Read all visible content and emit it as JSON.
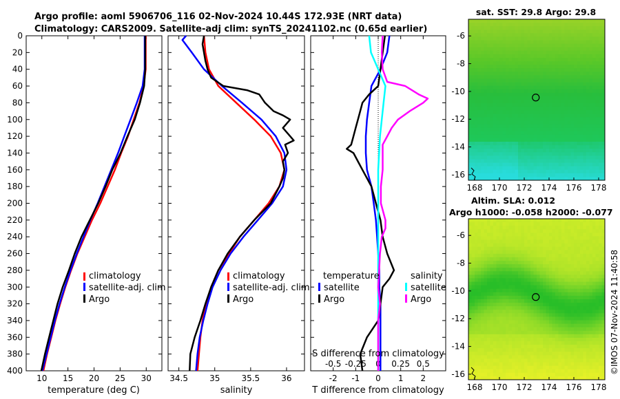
{
  "header": {
    "title_line1": "Argo profile: aoml 5906706_116 02-Nov-2024 10.44S 172.93E (NRT data)",
    "title_line2": "Climatology: CARS2009. Satellite-adj clim: synTS_20241102.nc (0.65d earlier)"
  },
  "colors": {
    "climatology": "#ff0000",
    "satellite": "#0000ff",
    "argo": "#000000",
    "sal_sat": "#00ffff",
    "sal_argo": "#ff00ff"
  },
  "chart_data": [
    {
      "type": "line",
      "xlabel": "temperature (deg C)",
      "xlim": [
        7,
        33
      ],
      "xticks": [
        10,
        15,
        20,
        25,
        30
      ],
      "ylim": [
        0,
        400
      ],
      "yticks": [
        0,
        20,
        40,
        60,
        80,
        100,
        120,
        140,
        160,
        180,
        200,
        220,
        240,
        260,
        280,
        300,
        320,
        340,
        360,
        380,
        400
      ],
      "legend": [
        "climatology",
        "satellite-adj. clim",
        "Argo"
      ],
      "series": [
        {
          "name": "climatology",
          "color": "#ff0000",
          "depth": [
            0,
            40,
            60,
            80,
            100,
            120,
            140,
            160,
            180,
            200,
            220,
            240,
            260,
            280,
            300,
            320,
            340,
            360,
            380,
            400
          ],
          "values": [
            29.9,
            29.9,
            29.5,
            28.7,
            27.6,
            26.5,
            25.2,
            24.0,
            22.6,
            21.2,
            19.6,
            18.2,
            16.8,
            15.6,
            14.5,
            13.5,
            12.6,
            11.8,
            11.0,
            10.3
          ]
        },
        {
          "name": "satellite-adj. clim",
          "color": "#0000ff",
          "depth": [
            0,
            40,
            60,
            80,
            100,
            120,
            140,
            160,
            180,
            200,
            220,
            240,
            260,
            280,
            300,
            320,
            340,
            360,
            380,
            400
          ],
          "values": [
            29.7,
            29.7,
            29.3,
            28.2,
            27.0,
            25.8,
            24.6,
            23.3,
            22.0,
            20.7,
            19.3,
            18.0,
            16.7,
            15.5,
            14.4,
            13.4,
            12.5,
            11.7,
            10.9,
            10.1
          ]
        },
        {
          "name": "Argo",
          "color": "#000000",
          "depth": [
            0,
            40,
            60,
            80,
            100,
            120,
            140,
            160,
            180,
            200,
            220,
            240,
            260,
            280,
            300,
            320,
            340,
            360,
            380,
            400
          ],
          "values": [
            29.8,
            29.8,
            29.6,
            28.8,
            27.8,
            26.4,
            25.1,
            23.5,
            22.2,
            20.8,
            19.2,
            17.6,
            16.3,
            15.2,
            14.0,
            13.0,
            12.2,
            11.4,
            10.6,
            9.9
          ]
        }
      ]
    },
    {
      "type": "line",
      "xlabel": "salinity",
      "xlim": [
        34.35,
        36.25
      ],
      "xticks": [
        34.5,
        35,
        35.5,
        36
      ],
      "xtick_labels": [
        "34.5",
        "35",
        "35.5",
        "36"
      ],
      "ylim": [
        0,
        400
      ],
      "legend": [
        "climatology",
        "satellite-adj. clim",
        "Argo"
      ],
      "series": [
        {
          "name": "climatology",
          "color": "#ff0000",
          "depth": [
            0,
            20,
            40,
            60,
            80,
            100,
            120,
            140,
            160,
            180,
            200,
            220,
            240,
            260,
            280,
            300,
            320,
            340,
            360,
            380,
            400
          ],
          "values": [
            34.85,
            34.87,
            34.92,
            35.05,
            35.3,
            35.55,
            35.78,
            35.92,
            35.97,
            35.9,
            35.75,
            35.55,
            35.35,
            35.2,
            35.05,
            34.95,
            34.88,
            34.83,
            34.8,
            34.78,
            34.76
          ]
        },
        {
          "name": "satellite-adj. clim",
          "color": "#0000ff",
          "depth": [
            0,
            5,
            20,
            40,
            60,
            80,
            100,
            120,
            140,
            160,
            180,
            200,
            220,
            240,
            260,
            280,
            300,
            320,
            340,
            360,
            380,
            400
          ],
          "values": [
            34.6,
            34.55,
            34.68,
            34.85,
            35.1,
            35.38,
            35.65,
            35.85,
            35.97,
            36.0,
            35.95,
            35.8,
            35.6,
            35.4,
            35.22,
            35.08,
            34.97,
            34.9,
            34.84,
            34.79,
            34.76,
            34.74
          ]
        },
        {
          "name": "Argo",
          "color": "#000000",
          "depth": [
            0,
            10,
            30,
            40,
            50,
            60,
            65,
            70,
            80,
            90,
            95,
            100,
            110,
            120,
            125,
            130,
            140,
            150,
            160,
            170,
            180,
            200,
            220,
            240,
            260,
            280,
            300,
            320,
            340,
            360,
            380,
            400
          ],
          "values": [
            34.85,
            34.83,
            34.87,
            34.9,
            34.95,
            35.12,
            35.45,
            35.62,
            35.7,
            35.82,
            35.95,
            36.05,
            35.95,
            36.05,
            36.1,
            35.98,
            36.02,
            35.95,
            35.97,
            35.95,
            35.9,
            35.78,
            35.55,
            35.35,
            35.18,
            35.05,
            34.95,
            34.87,
            34.8,
            34.72,
            34.66,
            34.65
          ]
        }
      ]
    },
    {
      "type": "line",
      "xlabel": "T difference from climatology",
      "xlabel_top": "S difference from climatology",
      "xlim": [
        -3,
        3
      ],
      "xticks": [
        -2,
        -1,
        0,
        1,
        2
      ],
      "xticks_top": [
        -0.5,
        -0.25,
        0,
        0.25,
        0.5
      ],
      "xticks_top_labels": [
        "-0.5",
        "-0.25",
        "0",
        "0.25",
        "0.5"
      ],
      "ylim": [
        0,
        400
      ],
      "legend_left_title": "temperature",
      "legend_right_title": "salinity",
      "legend_left": [
        "satellite",
        "Argo"
      ],
      "legend_right": [
        "satellite",
        "Argo"
      ],
      "series": [
        {
          "name": "temperature satellite",
          "color": "#0000ff",
          "depth": [
            0,
            20,
            40,
            60,
            80,
            100,
            120,
            140,
            160,
            180,
            200,
            220,
            240,
            260,
            280,
            300,
            320,
            340,
            360,
            380,
            400
          ],
          "values": [
            0.5,
            0.4,
            0.1,
            -0.3,
            -0.4,
            -0.5,
            -0.55,
            -0.55,
            -0.5,
            -0.3,
            -0.2,
            -0.1,
            -0.05,
            0,
            0.05,
            0.05,
            0.1,
            0.1,
            0.1,
            0.1,
            0.1
          ]
        },
        {
          "name": "temperature Argo",
          "color": "#000000",
          "depth": [
            0,
            20,
            40,
            60,
            70,
            80,
            90,
            100,
            110,
            120,
            130,
            135,
            140,
            150,
            160,
            170,
            180,
            200,
            220,
            240,
            260,
            280,
            290,
            300,
            320,
            340,
            360,
            380,
            400
          ],
          "values": [
            0.3,
            0.2,
            0.1,
            0.0,
            -0.4,
            -0.7,
            -0.8,
            -0.9,
            -1.0,
            -1.1,
            -1.2,
            -1.4,
            -1.1,
            -0.9,
            -0.7,
            -0.5,
            -0.3,
            -0.1,
            0.1,
            0.2,
            0.4,
            0.7,
            0.5,
            0.2,
            0.1,
            0.0,
            -0.5,
            -0.8,
            -0.7
          ]
        },
        {
          "name": "salinity satellite",
          "color": "#00ffff",
          "depth": [
            0,
            20,
            40,
            60,
            80,
            100,
            120,
            140,
            160,
            180,
            200,
            220,
            240,
            260,
            280,
            300,
            320,
            340,
            360,
            380,
            400
          ],
          "values": [
            -0.1,
            -0.08,
            0.0,
            0.08,
            0.06,
            0.04,
            0.02,
            0.01,
            0.0,
            0.0,
            0.0,
            0.0,
            0.0,
            0.0,
            0.0,
            0.0,
            0.0,
            0.0,
            0.0,
            0.0,
            0.0
          ]
        },
        {
          "name": "salinity Argo",
          "color": "#ff00ff",
          "depth": [
            0,
            20,
            40,
            55,
            60,
            70,
            75,
            80,
            90,
            100,
            110,
            120,
            130,
            140,
            160,
            180,
            200,
            220,
            230,
            240,
            260,
            280,
            300,
            320,
            340,
            360,
            380,
            400
          ],
          "values": [
            0.05,
            0.04,
            0.05,
            0.1,
            0.3,
            0.45,
            0.55,
            0.5,
            0.35,
            0.22,
            0.15,
            0.1,
            0.05,
            0.05,
            0.05,
            0.03,
            0.03,
            0.08,
            0.08,
            0.04,
            0.02,
            0.01,
            0.0,
            0.02,
            0.0,
            0.0,
            0.0,
            0.0
          ]
        }
      ]
    },
    {
      "type": "heatmap",
      "title": "sat. SST: 29.8 Argo: 29.8",
      "xticks": [
        168,
        170,
        172,
        174,
        176,
        178
      ],
      "yticks": [
        -6,
        -8,
        -10,
        -12,
        -14,
        -16
      ],
      "xlim": [
        167.5,
        178.5
      ],
      "ylim": [
        -16.4,
        -4.8
      ],
      "marker": {
        "lon": 172.93,
        "lat": -10.44
      }
    },
    {
      "type": "heatmap",
      "title": "Altim. SLA: 0.012",
      "subtitle": "Argo h1000: -0.058 h2000: -0.077",
      "xticks": [
        168,
        170,
        172,
        174,
        176,
        178
      ],
      "yticks": [
        -6,
        -8,
        -10,
        -12,
        -14,
        -16
      ],
      "xlim": [
        167.5,
        178.5
      ],
      "ylim": [
        -16.4,
        -4.8
      ],
      "marker": {
        "lon": 172.93,
        "lat": -10.44
      }
    }
  ],
  "watermark": "©IMOS 07-Nov-2024 11:40:58"
}
